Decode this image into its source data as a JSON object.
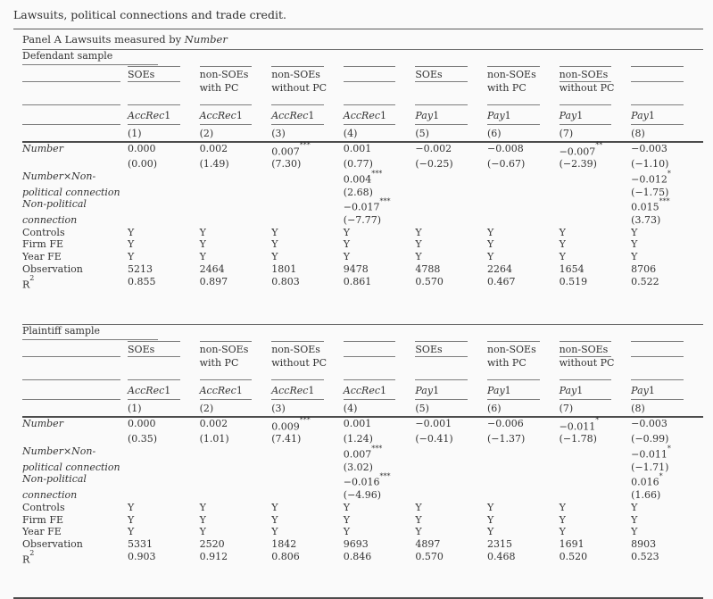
{
  "title": "Lawsuits, political connections and trade credit.",
  "panel": {
    "prefix": "Panel A Lawsuits measured by ",
    "italic": "Number"
  },
  "header": {
    "groups": [
      {
        "l1": "SOEs",
        "l2": ""
      },
      {
        "l1": "non-SOEs",
        "l2": "with PC"
      },
      {
        "l1": "non-SOEs",
        "l2": "without PC"
      },
      {
        "l1": "",
        "l2": ""
      },
      {
        "l1": "SOEs",
        "l2": ""
      },
      {
        "l1": "non-SOEs",
        "l2": "with PC"
      },
      {
        "l1": "non-SOEs",
        "l2": "without PC"
      },
      {
        "l1": "",
        "l2": ""
      }
    ],
    "measures_italic": [
      "AccRec",
      "AccRec",
      "AccRec",
      "AccRec",
      "Pay",
      "Pay",
      "Pay",
      "Pay"
    ],
    "measure_suffix": "1",
    "numbers": [
      "(1)",
      "(2)",
      "(3)",
      "(4)",
      "(5)",
      "(6)",
      "(7)",
      "(8)"
    ]
  },
  "sections": [
    {
      "name": "Defendant sample",
      "var_rows": [
        {
          "label1": "Number",
          "label2": "",
          "cells": [
            {
              "v": "0.000",
              "s": "",
              "t": "(0.00)"
            },
            {
              "v": "0.002",
              "s": "",
              "t": "(1.49)"
            },
            {
              "v": "0.007",
              "s": "***",
              "t": "(7.30)"
            },
            {
              "v": "0.001",
              "s": "",
              "t": "(0.77)"
            },
            {
              "v": "−0.002",
              "s": "",
              "t": "(−0.25)"
            },
            {
              "v": "−0.008",
              "s": "",
              "t": "(−0.67)"
            },
            {
              "v": "−0.007",
              "s": "**",
              "t": "(−2.39)"
            },
            {
              "v": "−0.003",
              "s": "",
              "t": "(−1.10)"
            }
          ]
        },
        {
          "label1": "Number×Non-",
          "label2": "political connection",
          "cells": [
            null,
            null,
            null,
            {
              "v": "0.004",
              "s": "***",
              "t": "(2.68)"
            },
            null,
            null,
            null,
            {
              "v": "−0.012",
              "s": "*",
              "t": "(−1.75)"
            }
          ]
        },
        {
          "label1": "Non-political",
          "label2": "connection",
          "cells": [
            null,
            null,
            null,
            {
              "v": "−0.017",
              "s": "***",
              "t": "(−7.77)"
            },
            null,
            null,
            null,
            {
              "v": "0.015",
              "s": "***",
              "t": "(3.73)"
            }
          ]
        }
      ],
      "info_rows": [
        {
          "label": "Controls",
          "sup": "",
          "values": [
            "Y",
            "Y",
            "Y",
            "Y",
            "Y",
            "Y",
            "Y",
            "Y"
          ]
        },
        {
          "label": "Firm FE",
          "sup": "",
          "values": [
            "Y",
            "Y",
            "Y",
            "Y",
            "Y",
            "Y",
            "Y",
            "Y"
          ]
        },
        {
          "label": "Year FE",
          "sup": "",
          "values": [
            "Y",
            "Y",
            "Y",
            "Y",
            "Y",
            "Y",
            "Y",
            "Y"
          ]
        },
        {
          "label": "Observation",
          "sup": "",
          "values": [
            "5213",
            "2464",
            "1801",
            "9478",
            "4788",
            "2264",
            "1654",
            "8706"
          ]
        },
        {
          "label": "R",
          "sup": "2",
          "values": [
            "0.855",
            "0.897",
            "0.803",
            "0.861",
            "0.570",
            "0.467",
            "0.519",
            "0.522"
          ]
        }
      ]
    },
    {
      "name": "Plaintiff sample",
      "var_rows": [
        {
          "label1": "Number",
          "label2": "",
          "cells": [
            {
              "v": "0.000",
              "s": "",
              "t": "(0.35)"
            },
            {
              "v": "0.002",
              "s": "",
              "t": "(1.01)"
            },
            {
              "v": "0.009",
              "s": "***",
              "t": "(7.41)"
            },
            {
              "v": "0.001",
              "s": "",
              "t": "(1.24)"
            },
            {
              "v": "−0.001",
              "s": "",
              "t": "(−0.41)"
            },
            {
              "v": "−0.006",
              "s": "",
              "t": "(−1.37)"
            },
            {
              "v": "−0.011",
              "s": "*",
              "t": "(−1.78)"
            },
            {
              "v": "−0.003",
              "s": "",
              "t": "(−0.99)"
            }
          ]
        },
        {
          "label1": "Number×Non-",
          "label2": "political connection",
          "cells": [
            null,
            null,
            null,
            {
              "v": "0.007",
              "s": "***",
              "t": "(3.02)"
            },
            null,
            null,
            null,
            {
              "v": "−0.011",
              "s": "*",
              "t": "(−1.71)"
            }
          ]
        },
        {
          "label1": "Non-political",
          "label2": "connection",
          "cells": [
            null,
            null,
            null,
            {
              "v": "−0.016",
              "s": "***",
              "t": "(−4.96)"
            },
            null,
            null,
            null,
            {
              "v": "0.016",
              "s": "*",
              "t": "(1.66)"
            }
          ]
        }
      ],
      "info_rows": [
        {
          "label": "Controls",
          "sup": "",
          "values": [
            "Y",
            "Y",
            "Y",
            "Y",
            "Y",
            "Y",
            "Y",
            "Y"
          ]
        },
        {
          "label": "Firm FE",
          "sup": "",
          "values": [
            "Y",
            "Y",
            "Y",
            "Y",
            "Y",
            "Y",
            "Y",
            "Y"
          ]
        },
        {
          "label": "Year FE",
          "sup": "",
          "values": [
            "Y",
            "Y",
            "Y",
            "Y",
            "Y",
            "Y",
            "Y",
            "Y"
          ]
        },
        {
          "label": "Observation",
          "sup": "",
          "values": [
            "5331",
            "2520",
            "1842",
            "9693",
            "4897",
            "2315",
            "1691",
            "8903"
          ]
        },
        {
          "label": "R",
          "sup": "2",
          "values": [
            "0.903",
            "0.912",
            "0.806",
            "0.846",
            "0.570",
            "0.468",
            "0.520",
            "0.523"
          ]
        }
      ]
    }
  ]
}
